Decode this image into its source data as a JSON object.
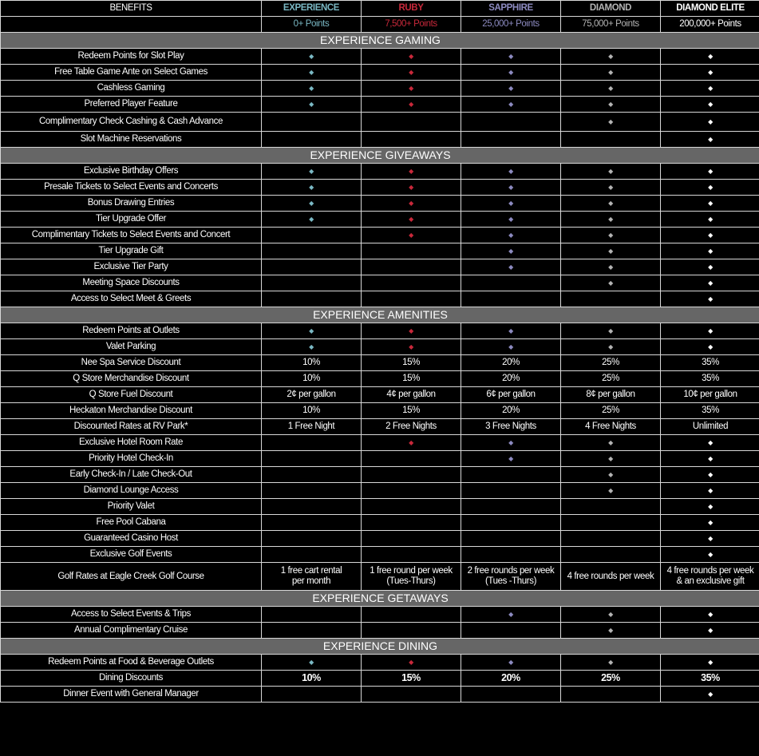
{
  "colors": {
    "tiers": [
      "#7ab8c4",
      "#c8283a",
      "#8c8ac0",
      "#b4b4b4",
      "#ffffff"
    ],
    "section_bg": "#666666"
  },
  "header": {
    "benefits_label": "BENEFITS",
    "tiers": [
      "EXPERIENCE",
      "RUBY",
      "SAPPHIRE",
      "DIAMOND",
      "DIAMOND ELITE"
    ],
    "points": [
      "0+ Points",
      "7,500+ Points",
      "25,000+ Points",
      "75,000+ Points",
      "200,000+ Points"
    ]
  },
  "diamond_icon": "diamond-bullet-icon",
  "sections": [
    {
      "title": "EXPERIENCE GAMING",
      "rows": [
        {
          "label": "Redeem Points for Slot Play",
          "cells": [
            true,
            true,
            true,
            true,
            true
          ]
        },
        {
          "label": "Free Table Game Ante on Select Games",
          "cells": [
            true,
            true,
            true,
            true,
            true
          ]
        },
        {
          "label": "Cashless Gaming",
          "cells": [
            true,
            true,
            true,
            true,
            true
          ]
        },
        {
          "label": "Preferred Player Feature",
          "cells": [
            true,
            true,
            true,
            true,
            true
          ]
        },
        {
          "label": "Complimentary Check Cashing & Cash Advance",
          "cells": [
            null,
            null,
            null,
            true,
            true
          ],
          "tall": true
        },
        {
          "label": "Slot Machine Reservations",
          "cells": [
            null,
            null,
            null,
            null,
            true
          ]
        }
      ]
    },
    {
      "title": "EXPERIENCE GIVEAWAYS",
      "rows": [
        {
          "label": "Exclusive Birthday Offers",
          "cells": [
            true,
            true,
            true,
            true,
            true
          ]
        },
        {
          "label": "Presale Tickets to Select Events and Concerts",
          "cells": [
            true,
            true,
            true,
            true,
            true
          ]
        },
        {
          "label": "Bonus Drawing Entries",
          "cells": [
            true,
            true,
            true,
            true,
            true
          ]
        },
        {
          "label": "Tier Upgrade Offer",
          "cells": [
            true,
            true,
            true,
            true,
            true
          ]
        },
        {
          "label": "Complimentary Tickets to Select Events and Concert",
          "cells": [
            null,
            true,
            true,
            true,
            true
          ]
        },
        {
          "label": "Tier Upgrade Gift",
          "cells": [
            null,
            null,
            true,
            true,
            true
          ]
        },
        {
          "label": "Exclusive Tier Party",
          "cells": [
            null,
            null,
            true,
            true,
            true
          ]
        },
        {
          "label": "Meeting Space Discounts",
          "cells": [
            null,
            null,
            null,
            true,
            true
          ]
        },
        {
          "label": "Access to Select Meet & Greets",
          "cells": [
            null,
            null,
            null,
            null,
            true
          ]
        }
      ]
    },
    {
      "title": "EXPERIENCE AMENITIES",
      "rows": [
        {
          "label": "Redeem Points at Outlets",
          "cells": [
            true,
            true,
            true,
            true,
            true
          ]
        },
        {
          "label": "Valet Parking",
          "cells": [
            true,
            true,
            true,
            true,
            true
          ]
        },
        {
          "label": "Nee Spa Service Discount",
          "cells": [
            "10%",
            "15%",
            "20%",
            "25%",
            "35%"
          ]
        },
        {
          "label": "Q Store Merchandise Discount",
          "cells": [
            "10%",
            "15%",
            "20%",
            "25%",
            "35%"
          ]
        },
        {
          "label": "Q Store Fuel Discount",
          "cells": [
            "2¢ per gallon",
            "4¢ per gallon",
            "6¢ per gallon",
            "8¢ per gallon",
            "10¢ per gallon"
          ]
        },
        {
          "label": "Heckaton Merchandise Discount",
          "cells": [
            "10%",
            "15%",
            "20%",
            "25%",
            "35%"
          ]
        },
        {
          "label": "Discounted Rates at RV Park*",
          "cells": [
            "1 Free Night",
            "2 Free Nights",
            "3 Free Nights",
            "4 Free Nights",
            "Unlimited"
          ]
        },
        {
          "label": "Exclusive Hotel Room Rate",
          "cells": [
            null,
            true,
            true,
            true,
            true
          ]
        },
        {
          "label": "Priority Hotel Check-In",
          "cells": [
            null,
            null,
            true,
            true,
            true
          ]
        },
        {
          "label": "Early Check-In / Late Check-Out",
          "cells": [
            null,
            null,
            null,
            true,
            true
          ]
        },
        {
          "label": "Diamond Lounge Access",
          "cells": [
            null,
            null,
            null,
            true,
            true
          ]
        },
        {
          "label": "Priority Valet",
          "cells": [
            null,
            null,
            null,
            null,
            true
          ]
        },
        {
          "label": "Free Pool Cabana",
          "cells": [
            null,
            null,
            null,
            null,
            true
          ]
        },
        {
          "label": "Guaranteed Casino Host",
          "cells": [
            null,
            null,
            null,
            null,
            true
          ]
        },
        {
          "label": "Exclusive Golf Events",
          "cells": [
            null,
            null,
            null,
            null,
            true
          ]
        },
        {
          "label": "Golf Rates at Eagle Creek Golf Course",
          "cells": [
            "1 free cart rental\nper month",
            "1 free round per week\n(Tues-Thurs)",
            "2 free rounds per week\n(Tues -Thurs)",
            "4 free rounds per week",
            "4 free rounds per week\n& an exclusive gift"
          ],
          "golf": true
        }
      ]
    },
    {
      "title": "EXPERIENCE GETAWAYS",
      "rows": [
        {
          "label": "Access to Select Events & Trips",
          "cells": [
            null,
            null,
            true,
            true,
            true
          ]
        },
        {
          "label": "Annual Complimentary Cruise",
          "cells": [
            null,
            null,
            null,
            true,
            true
          ]
        }
      ]
    },
    {
      "title": "EXPERIENCE DINING",
      "rows": [
        {
          "label": "Redeem Points at Food & Beverage Outlets",
          "cells": [
            true,
            true,
            true,
            true,
            true
          ]
        },
        {
          "label": "Dining Discounts",
          "cells": [
            "10%",
            "15%",
            "20%",
            "25%",
            "35%"
          ],
          "bold": true
        },
        {
          "label": "Dinner Event with General Manager",
          "cells": [
            null,
            null,
            null,
            null,
            true
          ]
        }
      ]
    }
  ]
}
